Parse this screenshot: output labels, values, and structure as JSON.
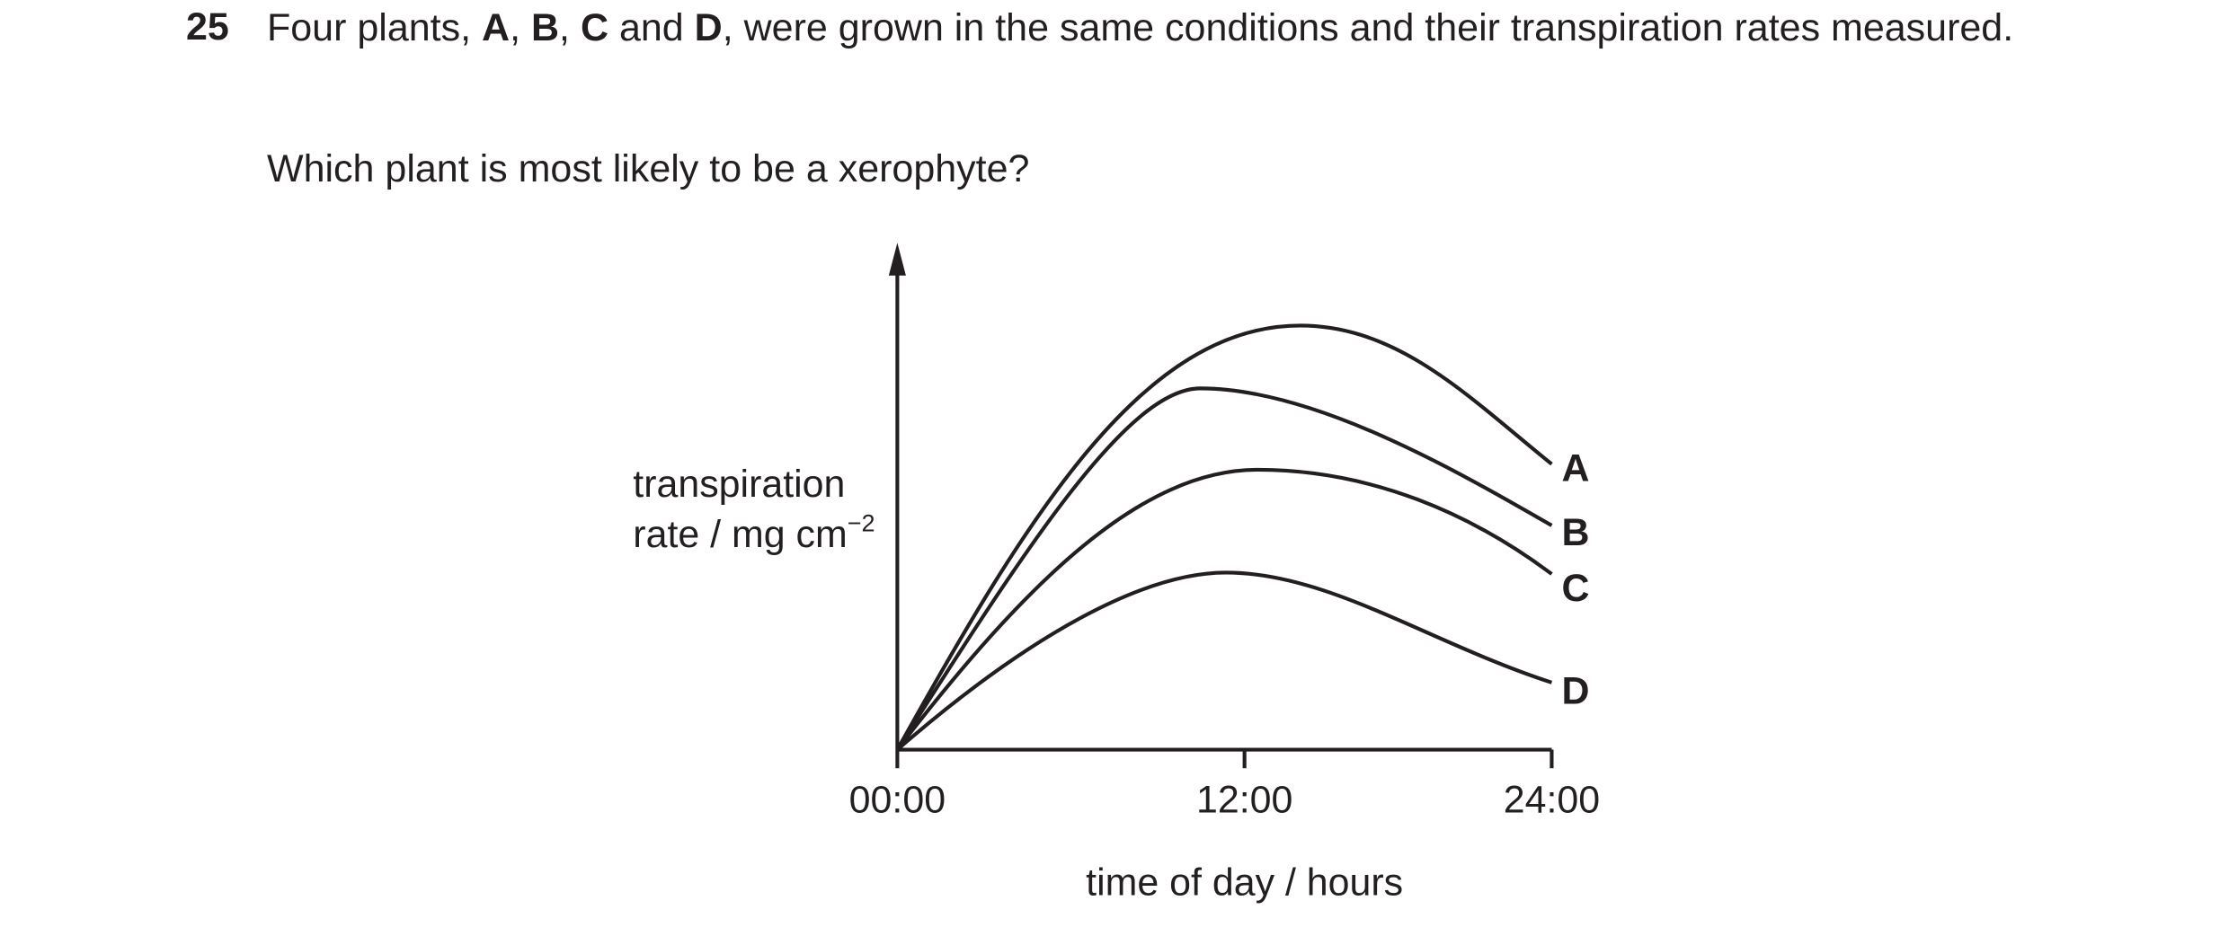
{
  "question": {
    "number": "25",
    "text_parts": [
      "Four plants, ",
      "A",
      ", ",
      "B",
      ", ",
      "C",
      " and ",
      "D",
      ", were grown in the same conditions and their transpiration rates measured."
    ],
    "prompt": "Which plant is most likely to be a xerophyte?"
  },
  "figure": {
    "y_label_line1": "transpiration",
    "y_label_line2": "rate / mg cm",
    "y_label_superscript": "−2",
    "x_ticks": [
      "00:00",
      "12:00",
      "24:00"
    ],
    "x_label": "time of day / hours",
    "curve_labels": [
      "A",
      "B",
      "C",
      "D"
    ]
  }
}
